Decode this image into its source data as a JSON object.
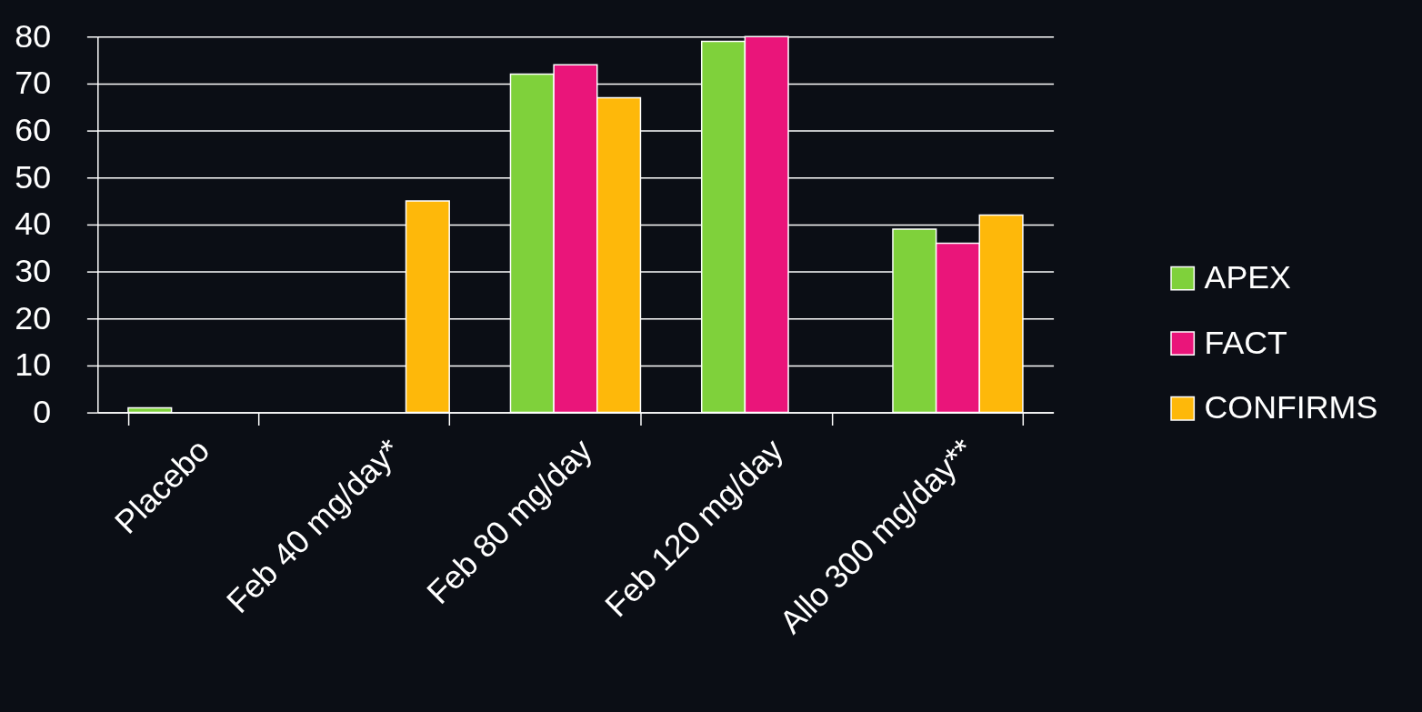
{
  "chart_data": {
    "type": "bar",
    "categories": [
      "Placebo",
      "Feb 40 mg/day*",
      "Feb 80 mg/day",
      "Feb 120 mg/day",
      "Allo 300 mg/day**"
    ],
    "series": [
      {
        "name": "APEX",
        "color": "#7fd13b",
        "values": [
          1,
          null,
          72,
          79,
          39
        ]
      },
      {
        "name": "FACT",
        "color": "#ea157a",
        "values": [
          null,
          null,
          74,
          80,
          36
        ]
      },
      {
        "name": "CONFIRMS",
        "color": "#feb80a",
        "values": [
          null,
          45,
          67,
          null,
          42
        ]
      }
    ],
    "ylim": [
      0,
      80
    ],
    "yticks": [
      0,
      10,
      20,
      30,
      40,
      50,
      60,
      70,
      80
    ],
    "grid": "y",
    "legend": "right"
  }
}
